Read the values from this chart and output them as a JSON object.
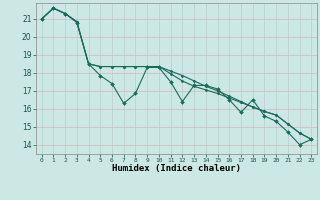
{
  "xlabel": "Humidex (Indice chaleur)",
  "ylabel": "",
  "background_color": "#cce8e4",
  "grid_major_color": "#c8d8d4",
  "grid_minor_color": "#e8c8c8",
  "line_color": "#1a6b5a",
  "xlim": [
    -0.5,
    23.5
  ],
  "ylim": [
    13.5,
    21.9
  ],
  "yticks": [
    14,
    15,
    16,
    17,
    18,
    19,
    20,
    21
  ],
  "xticks": [
    0,
    1,
    2,
    3,
    4,
    5,
    6,
    7,
    8,
    9,
    10,
    11,
    12,
    13,
    14,
    15,
    16,
    17,
    18,
    19,
    20,
    21,
    22,
    23
  ],
  "series1": [
    21.0,
    21.6,
    21.3,
    20.8,
    18.5,
    17.85,
    17.4,
    16.3,
    16.85,
    18.3,
    18.3,
    17.5,
    16.4,
    17.3,
    17.3,
    17.1,
    16.5,
    15.8,
    16.5,
    15.6,
    15.3,
    14.7,
    14.0,
    14.3
  ],
  "series2": [
    21.0,
    21.6,
    21.3,
    20.85,
    18.5,
    18.35,
    18.35,
    18.35,
    18.35,
    18.35,
    18.35,
    17.95,
    17.55,
    17.25,
    17.05,
    16.85,
    16.6,
    16.35,
    16.1,
    15.85,
    15.65,
    15.15,
    14.65,
    14.3
  ],
  "series3": [
    21.0,
    21.6,
    21.3,
    20.85,
    18.5,
    18.35,
    18.35,
    18.35,
    18.35,
    18.35,
    18.35,
    18.1,
    17.85,
    17.55,
    17.25,
    17.0,
    16.7,
    16.4,
    16.1,
    15.85,
    15.65,
    15.15,
    14.65,
    14.3
  ]
}
